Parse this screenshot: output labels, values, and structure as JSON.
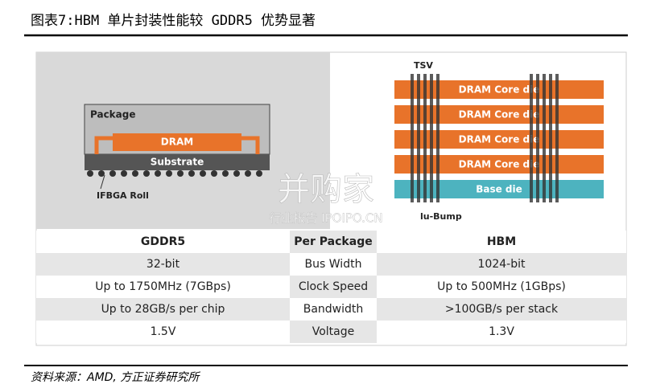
{
  "header": {
    "title": "图表7:HBM 单片封装性能较 GDDR5 优势显著"
  },
  "diagram": {
    "left": {
      "package": "Package",
      "dram": "DRAM",
      "substrate": "Substrate",
      "ball": "IFBGA Roll"
    },
    "right": {
      "tsv": "TSV",
      "core_dies": [
        "DRAM Core die",
        "DRAM Core die",
        "DRAM Core die",
        "DRAM Core die"
      ],
      "base": "Base die",
      "bump": "lu-Bump"
    }
  },
  "watermark": {
    "brand": "并购家",
    "sub": "行业报告 IPOIPO.CN"
  },
  "table": {
    "columns": [
      "GDDR5",
      "Per Package",
      "HBM"
    ],
    "rows": [
      [
        "32-bit",
        "Bus Width",
        "1024-bit"
      ],
      [
        "Up to 1750MHz (7GBps)",
        "Clock Speed",
        "Up to 500MHz (1GBps)"
      ],
      [
        "Up to 28GB/s per chip",
        "Bandwidth",
        ">100GB/s per stack"
      ],
      [
        "1.5V",
        "Voltage",
        "1.3V"
      ]
    ]
  },
  "footer": {
    "source": "资料来源：AMD, 方正证券研究所"
  }
}
